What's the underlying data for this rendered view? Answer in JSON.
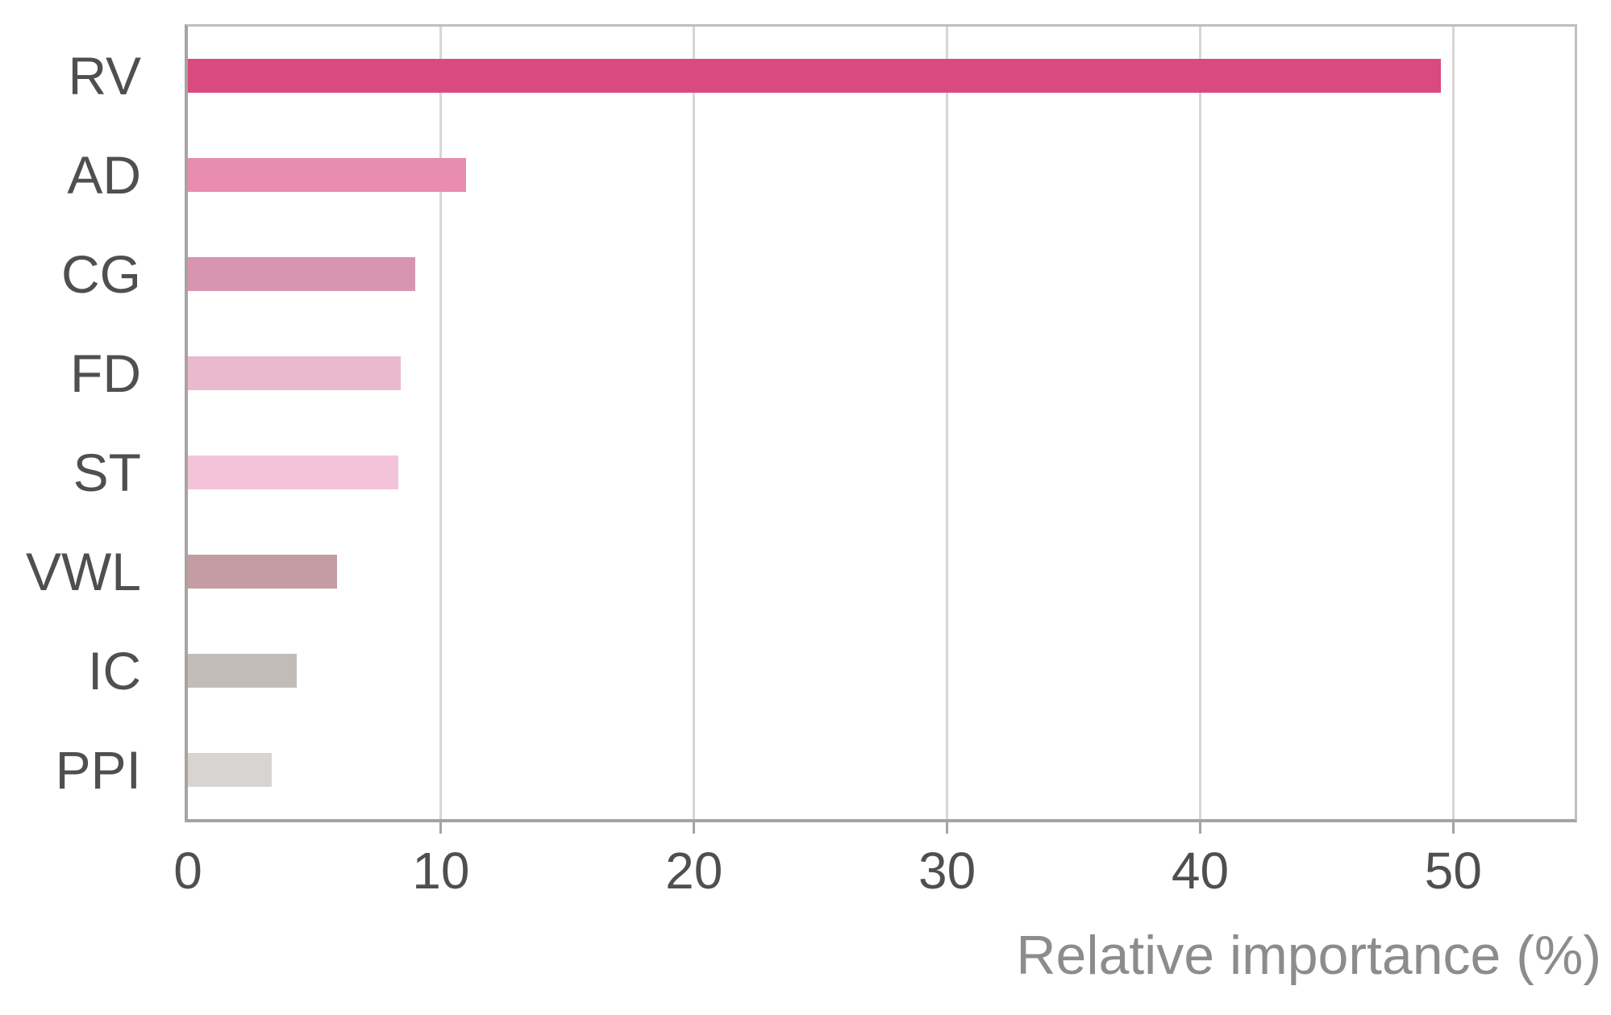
{
  "chart_data": {
    "type": "bar",
    "orientation": "horizontal",
    "title": "",
    "xlabel": "Relative importance (%)",
    "ylabel": "",
    "categories": [
      "RV",
      "AD",
      "CG",
      "FD",
      "ST",
      "VWL",
      "IC",
      "PPI"
    ],
    "values": [
      49.5,
      11.0,
      9.0,
      8.4,
      8.3,
      5.9,
      4.3,
      3.3
    ],
    "bar_colors": [
      "#d84a80",
      "#e88dae",
      "#d795b1",
      "#e9b9ce",
      "#f3c4d9",
      "#c49da4",
      "#c2bcb9",
      "#d8d4d2"
    ],
    "xlim": [
      0,
      54.8
    ],
    "xticks": [
      0,
      10,
      20,
      30,
      40,
      50
    ],
    "grid": "vertical-at-xticks",
    "legend_position": "none"
  },
  "styles": {
    "background_color": "#ffffff",
    "axis_line_color": "#a7a3a0",
    "plot_border_color": "#c1bebc",
    "gridline_color": "#d8d5d3",
    "tick_mark_color": "#a7a3a0",
    "tick_label_color": "#4f4f4f",
    "category_label_color": "#4f4f4f",
    "axis_title_color": "#8c8c8c"
  }
}
